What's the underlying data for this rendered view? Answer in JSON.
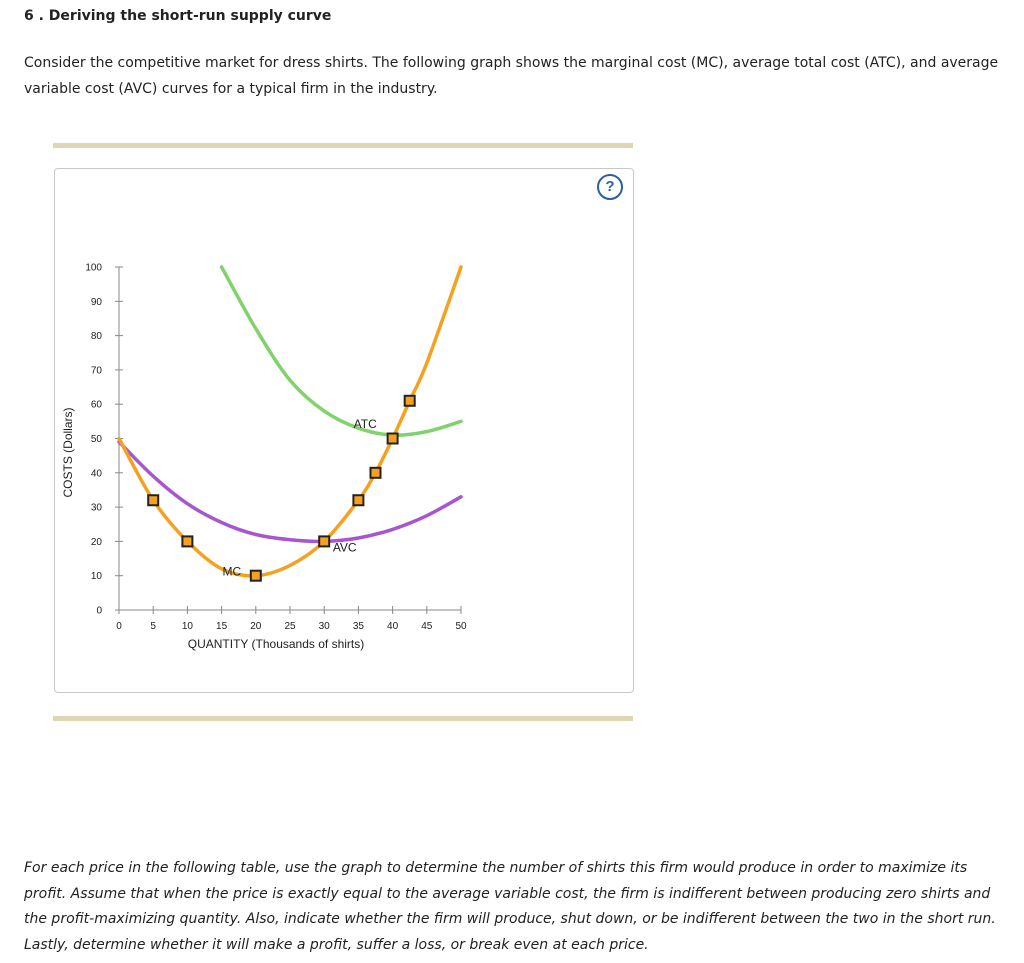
{
  "question": {
    "title": "6 . Deriving the short-run supply curve",
    "intro": "Consider the competitive market for dress shirts. The following graph shows the marginal cost (MC), average total cost (ATC), and average variable cost (AVC) curves for a typical firm in the industry.",
    "outro": "For each price in the following table, use the graph to determine the number of shirts this firm would produce in order to maximize its profit. Assume that when the price is exactly equal to the average variable cost, the firm is indifferent between producing zero shirts and the profit-maximizing quantity. Also, indicate whether the firm will produce, shut down, or be indifferent between the two in the short run. Lastly, determine whether it will make a profit, suffer a loss, or break even at each price."
  },
  "graph": {
    "help_label": "?"
  },
  "colors": {
    "mc": "#f5a11f",
    "atc": "#7fd36a",
    "avc": "#a656cf",
    "marker_fill": "#f5a11f",
    "marker_stroke": "#222222",
    "rule": "#ddd5b4",
    "help": "#2a5fa8"
  },
  "chart_data": {
    "type": "line",
    "xlabel": "QUANTITY (Thousands of shirts)",
    "ylabel": "COSTS (Dollars)",
    "xlim": [
      0,
      50
    ],
    "ylim": [
      0,
      100
    ],
    "xticks": [
      0,
      5,
      10,
      15,
      20,
      25,
      30,
      35,
      40,
      45,
      50
    ],
    "yticks": [
      0,
      10,
      20,
      30,
      40,
      50,
      60,
      70,
      80,
      90,
      100
    ],
    "grid": false,
    "series": [
      {
        "name": "MC",
        "color": "#f5a11f",
        "x": [
          0,
          5,
          10,
          15,
          20,
          25,
          30,
          35,
          37.5,
          40,
          42.5,
          45,
          50
        ],
        "y": [
          50,
          32,
          20,
          12,
          10,
          13,
          20,
          32,
          40,
          50,
          61,
          72,
          100
        ]
      },
      {
        "name": "ATC",
        "color": "#7fd36a",
        "x": [
          15,
          20,
          25,
          30,
          35,
          40,
          45,
          50
        ],
        "y": [
          100,
          82,
          67,
          58,
          53,
          51,
          52,
          55
        ]
      },
      {
        "name": "AVC",
        "color": "#a656cf",
        "x": [
          0,
          5,
          10,
          15,
          20,
          25,
          30,
          35,
          40,
          45,
          50
        ],
        "y": [
          49,
          39,
          31,
          25.5,
          22,
          20.5,
          20,
          21,
          23.5,
          27.5,
          33
        ]
      }
    ],
    "points": [
      {
        "x": 5,
        "y": 32
      },
      {
        "x": 10,
        "y": 20
      },
      {
        "x": 20,
        "y": 10
      },
      {
        "x": 30,
        "y": 20
      },
      {
        "x": 35,
        "y": 32
      },
      {
        "x": 37.5,
        "y": 40
      },
      {
        "x": 40,
        "y": 50
      },
      {
        "x": 42.5,
        "y": 61
      }
    ],
    "labels": [
      {
        "text": "MC",
        "x": 16.5,
        "y": 10
      },
      {
        "text": "ATC",
        "x": 36,
        "y": 53
      },
      {
        "text": "AVC",
        "x": 33,
        "y": 17
      }
    ]
  }
}
